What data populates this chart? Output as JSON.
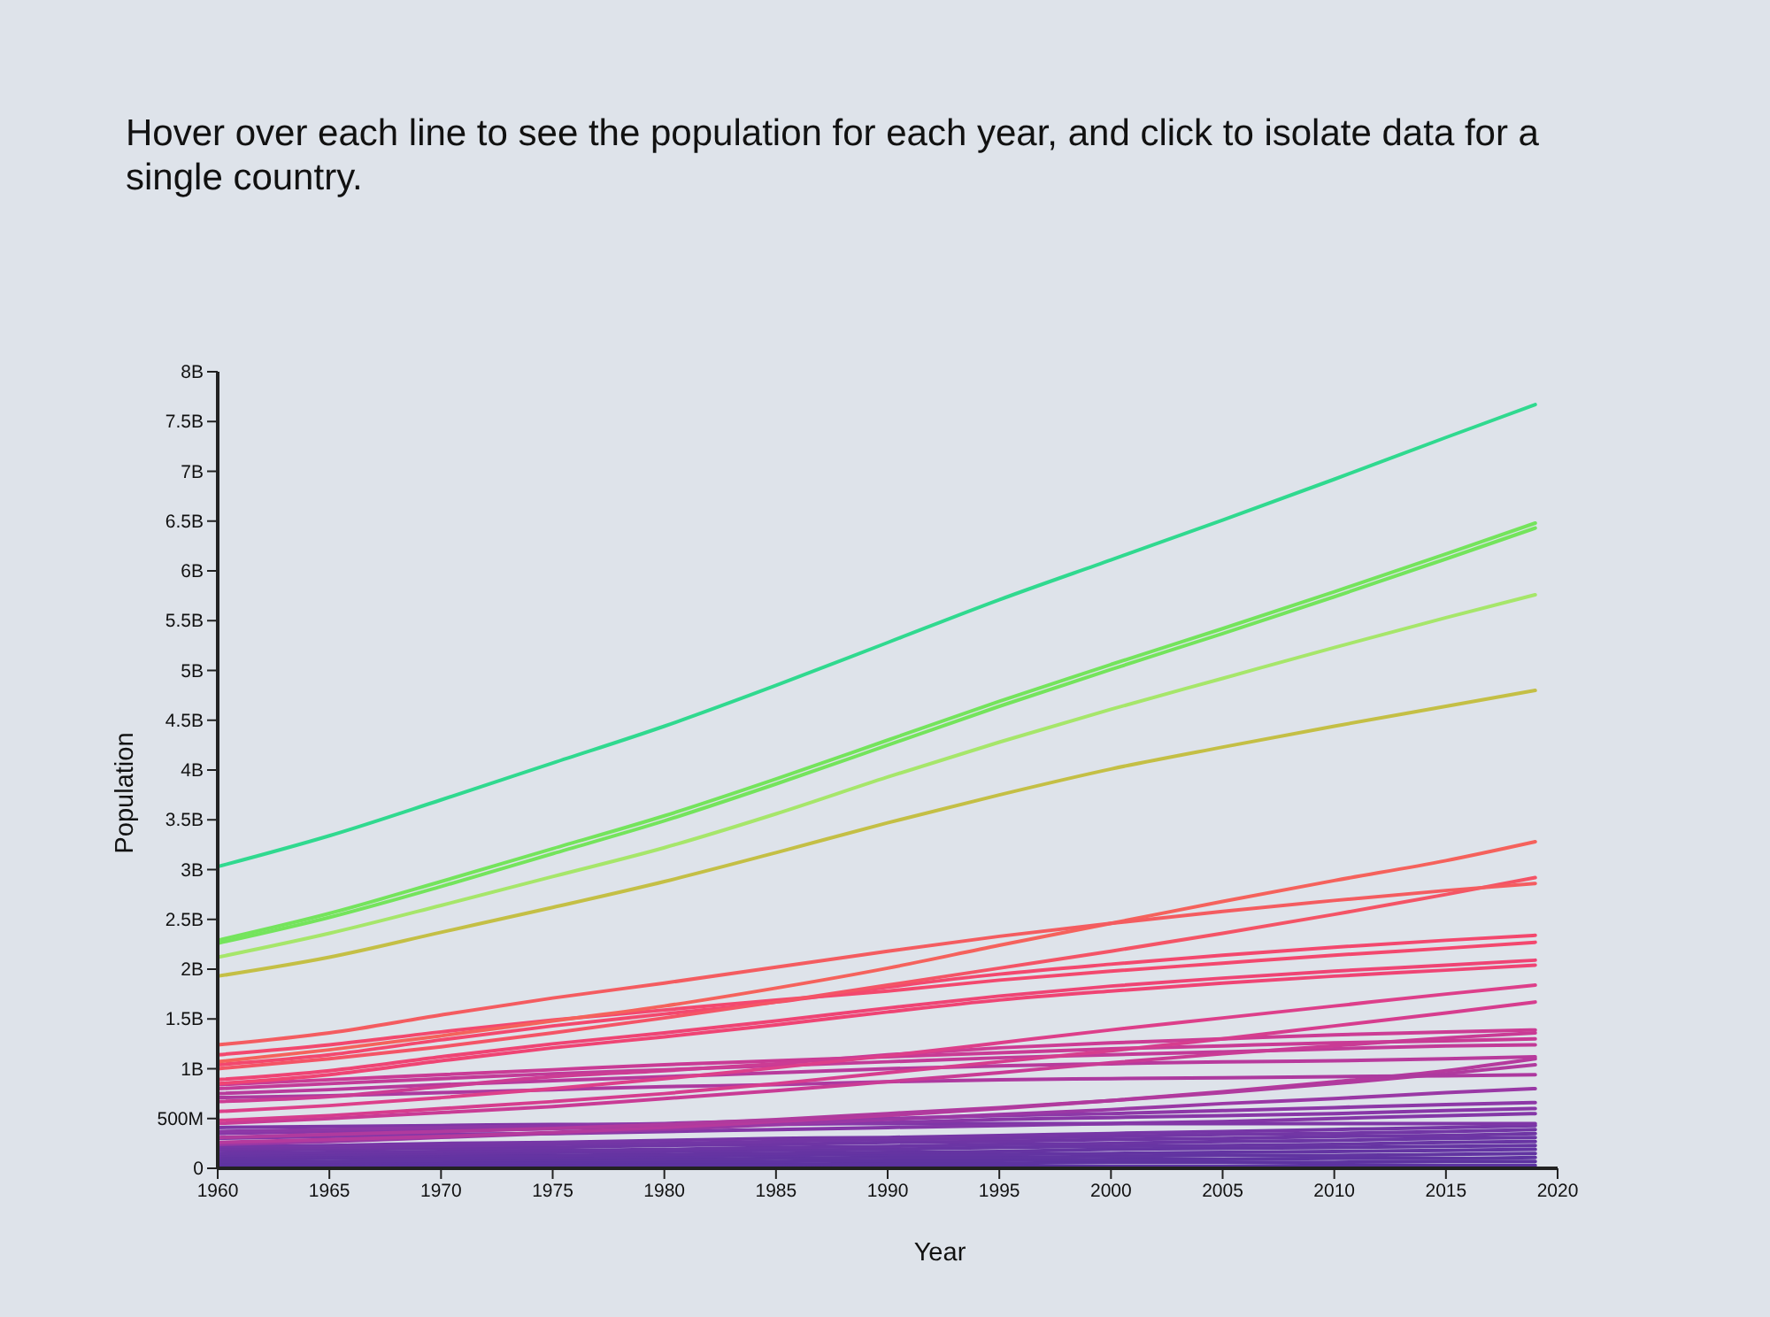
{
  "chart_data": {
    "type": "line",
    "subtitle": "Hover over each line to see the population for each year, and click to isolate data for a single country.",
    "xlabel": "Year",
    "ylabel": "Population",
    "x": [
      1960,
      1965,
      1970,
      1975,
      1980,
      1985,
      1990,
      1995,
      2000,
      2005,
      2010,
      2015,
      2019
    ],
    "xlim": [
      1960,
      2020
    ],
    "xticks": [
      1960,
      1965,
      1970,
      1975,
      1980,
      1985,
      1990,
      1995,
      2000,
      2005,
      2010,
      2015,
      2020
    ],
    "ylim": [
      0,
      8000000000.0
    ],
    "yticks": [
      0,
      {
        "value": 500000000.0,
        "label": "500M"
      },
      {
        "value": 1000000000.0,
        "label": "1B"
      },
      {
        "value": 1500000000.0,
        "label": "1.5B"
      },
      {
        "value": 2000000000.0,
        "label": "2B"
      },
      {
        "value": 2500000000.0,
        "label": "2.5B"
      },
      {
        "value": 3000000000.0,
        "label": "3B"
      },
      {
        "value": 3500000000.0,
        "label": "3.5B"
      },
      {
        "value": 4000000000.0,
        "label": "4B"
      },
      {
        "value": 4500000000.0,
        "label": "4.5B"
      },
      {
        "value": 5000000000.0,
        "label": "5B"
      },
      {
        "value": 5500000000.0,
        "label": "5.5B"
      },
      {
        "value": 6000000000.0,
        "label": "6B"
      },
      {
        "value": 6500000000.0,
        "label": "6.5B"
      },
      {
        "value": 7000000000.0,
        "label": "7B"
      },
      {
        "value": 7500000000.0,
        "label": "7.5B"
      },
      {
        "value": 8000000000.0,
        "label": "8B"
      }
    ],
    "series": [
      {
        "color": "#5b32a0",
        "values": [
          10000000.0,
          10000000.0,
          10000000.0,
          10000000.0,
          20000000.0,
          20000000.0,
          20000000.0,
          20000000.0,
          20000000.0,
          20000000.0,
          30000000.0,
          30000000.0,
          30000000.0
        ]
      },
      {
        "color": "#5d33a0",
        "values": [
          30000000.0,
          30000000.0,
          40000000.0,
          40000000.0,
          40000000.0,
          40000000.0,
          50000000.0,
          50000000.0,
          60000000.0,
          60000000.0,
          60000000.0,
          70000000.0,
          70000000.0
        ]
      },
      {
        "color": "#5f33a1",
        "values": [
          50000000.0,
          50000000.0,
          60000000.0,
          60000000.0,
          70000000.0,
          70000000.0,
          80000000.0,
          80000000.0,
          90000000.0,
          90000000.0,
          100000000.0,
          100000000.0,
          110000000.0
        ]
      },
      {
        "color": "#6134a1",
        "values": [
          70000000.0,
          70000000.0,
          80000000.0,
          90000000.0,
          90000000.0,
          100000000.0,
          110000000.0,
          110000000.0,
          120000000.0,
          130000000.0,
          130000000.0,
          140000000.0,
          150000000.0
        ]
      },
      {
        "color": "#6334a2",
        "values": [
          90000000.0,
          100000000.0,
          100000000.0,
          110000000.0,
          120000000.0,
          130000000.0,
          140000000.0,
          140000000.0,
          150000000.0,
          160000000.0,
          170000000.0,
          180000000.0,
          190000000.0
        ]
      },
      {
        "color": "#6534a2",
        "values": [
          110000000.0,
          120000000.0,
          130000000.0,
          130000000.0,
          140000000.0,
          150000000.0,
          160000000.0,
          170000000.0,
          190000000.0,
          200000000.0,
          210000000.0,
          220000000.0,
          230000000.0
        ]
      },
      {
        "color": "#6835a3",
        "values": [
          130000000.0,
          140000000.0,
          150000000.0,
          160000000.0,
          170000000.0,
          180000000.0,
          190000000.0,
          210000000.0,
          220000000.0,
          230000000.0,
          240000000.0,
          260000000.0,
          270000000.0
        ]
      },
      {
        "color": "#6b35a4",
        "values": [
          150000000.0,
          160000000.0,
          170000000.0,
          180000000.0,
          190000000.0,
          210000000.0,
          220000000.0,
          240000000.0,
          250000000.0,
          270000000.0,
          280000000.0,
          300000000.0,
          310000000.0
        ]
      },
      {
        "color": "#6e35a4",
        "values": [
          180000000.0,
          190000000.0,
          200000000.0,
          210000000.0,
          230000000.0,
          240000000.0,
          260000000.0,
          270000000.0,
          290000000.0,
          300000000.0,
          320000000.0,
          330000000.0,
          350000000.0
        ]
      },
      {
        "color": "#7236a5",
        "values": [
          200000000.0,
          210000000.0,
          220000000.0,
          240000000.0,
          250000000.0,
          270000000.0,
          290000000.0,
          300000000.0,
          320000000.0,
          340000000.0,
          350000000.0,
          370000000.0,
          390000000.0
        ]
      },
      {
        "color": "#7636a6",
        "values": [
          220000000.0,
          230000000.0,
          250000000.0,
          260000000.0,
          280000000.0,
          300000000.0,
          310000000.0,
          330000000.0,
          350000000.0,
          370000000.0,
          390000000.0,
          410000000.0,
          430000000.0
        ]
      },
      {
        "color": "#7e36a6",
        "values": [
          410000000.0,
          420000000.0,
          430000000.0,
          440000000.0,
          440000000.0,
          450000000.0,
          450000000.0,
          450000000.0,
          450000000.0,
          450000000.0,
          450000000.0,
          450000000.0,
          450000000.0
        ]
      },
      {
        "color": "#8437a7",
        "values": [
          300000000.0,
          320000000.0,
          340000000.0,
          350000000.0,
          370000000.0,
          390000000.0,
          410000000.0,
          430000000.0,
          450000000.0,
          470000000.0,
          500000000.0,
          530000000.0,
          550000000.0
        ]
      },
      {
        "color": "#8837a7",
        "values": [
          350000000.0,
          370000000.0,
          380000000.0,
          400000000.0,
          420000000.0,
          440000000.0,
          460000000.0,
          490000000.0,
          510000000.0,
          530000000.0,
          550000000.0,
          580000000.0,
          600000000.0
        ]
      },
      {
        "color": "#8d38a7",
        "values": [
          370000000.0,
          390000000.0,
          410000000.0,
          430000000.0,
          450000000.0,
          480000000.0,
          500000000.0,
          530000000.0,
          550000000.0,
          580000000.0,
          610000000.0,
          640000000.0,
          660000000.0
        ]
      },
      {
        "color": "#9a38a5",
        "values": [
          240000000.0,
          270000000.0,
          310000000.0,
          350000000.0,
          390000000.0,
          440000000.0,
          490000000.0,
          540000000.0,
          590000000.0,
          650000000.0,
          700000000.0,
          760000000.0,
          800000000.0
        ]
      },
      {
        "color": "#b53a9d",
        "values": [
          260000000.0,
          290000000.0,
          320000000.0,
          360000000.0,
          410000000.0,
          470000000.0,
          530000000.0,
          600000000.0,
          680000000.0,
          770000000.0,
          870000000.0,
          980000000.0,
          1100000000.0
        ]
      },
      {
        "color": "#b03a9e",
        "values": [
          310000000.0,
          340000000.0,
          370000000.0,
          400000000.0,
          440000000.0,
          490000000.0,
          550000000.0,
          610000000.0,
          680000000.0,
          760000000.0,
          850000000.0,
          950000000.0,
          1040000000.0
        ]
      },
      {
        "color": "#ad399f",
        "values": [
          710000000.0,
          730000000.0,
          760000000.0,
          790000000.0,
          820000000.0,
          840000000.0,
          870000000.0,
          890000000.0,
          900000000.0,
          910000000.0,
          920000000.0,
          930000000.0,
          940000000.0
        ]
      },
      {
        "color": "#b83a9c",
        "values": [
          750000000.0,
          790000000.0,
          840000000.0,
          880000000.0,
          920000000.0,
          960000000.0,
          1000000000.0,
          1030000000.0,
          1050000000.0,
          1070000000.0,
          1080000000.0,
          1100000000.0,
          1120000000.0
        ]
      },
      {
        "color": "#c23b98",
        "values": [
          800000000.0,
          850000000.0,
          900000000.0,
          950000000.0,
          990000000.0,
          1030000000.0,
          1070000000.0,
          1110000000.0,
          1140000000.0,
          1170000000.0,
          1200000000.0,
          1230000000.0,
          1240000000.0
        ]
      },
      {
        "color": "#c93b95",
        "values": [
          840000000.0,
          890000000.0,
          940000000.0,
          990000000.0,
          1040000000.0,
          1080000000.0,
          1120000000.0,
          1160000000.0,
          1200000000.0,
          1230000000.0,
          1260000000.0,
          1280000000.0,
          1300000000.0
        ]
      },
      {
        "color": "#c93b95",
        "values": [
          450000000.0,
          500000000.0,
          560000000.0,
          620000000.0,
          700000000.0,
          780000000.0,
          870000000.0,
          960000000.0,
          1060000000.0,
          1150000000.0,
          1230000000.0,
          1310000000.0,
          1360000000.0
        ]
      },
      {
        "color": "#cc3c94",
        "values": [
          670000000.0,
          720000000.0,
          820000000.0,
          920000000.0,
          980000000.0,
          1050000000.0,
          1140000000.0,
          1210000000.0,
          1260000000.0,
          1300000000.0,
          1340000000.0,
          1370000000.0,
          1390000000.0
        ]
      },
      {
        "color": "#d63d8e",
        "values": [
          480000000.0,
          530000000.0,
          600000000.0,
          670000000.0,
          750000000.0,
          850000000.0,
          960000000.0,
          1070000000.0,
          1180000000.0,
          1300000000.0,
          1430000000.0,
          1560000000.0,
          1670000000.0
        ]
      },
      {
        "color": "#dd3f8a",
        "values": [
          570000000.0,
          630000000.0,
          710000000.0,
          800000000.0,
          900000000.0,
          1010000000.0,
          1130000000.0,
          1260000000.0,
          1390000000.0,
          1510000000.0,
          1630000000.0,
          1750000000.0,
          1840000000.0
        ]
      },
      {
        "color": "#ef4474",
        "values": [
          850000000.0,
          940000000.0,
          1080000000.0,
          1210000000.0,
          1320000000.0,
          1440000000.0,
          1570000000.0,
          1690000000.0,
          1780000000.0,
          1860000000.0,
          1930000000.0,
          1990000000.0,
          2040000000.0
        ]
      },
      {
        "color": "#ef4474",
        "values": [
          890000000.0,
          980000000.0,
          1120000000.0,
          1250000000.0,
          1360000000.0,
          1480000000.0,
          1610000000.0,
          1730000000.0,
          1830000000.0,
          1910000000.0,
          1980000000.0,
          2040000000.0,
          2090000000.0
        ]
      },
      {
        "color": "#f3486e",
        "values": [
          1140000000.0,
          1240000000.0,
          1370000000.0,
          1490000000.0,
          1590000000.0,
          1690000000.0,
          1780000000.0,
          1890000000.0,
          1980000000.0,
          2060000000.0,
          2140000000.0,
          2210000000.0,
          2270000000.0
        ]
      },
      {
        "color": "#f3486e",
        "values": [
          1040000000.0,
          1140000000.0,
          1290000000.0,
          1430000000.0,
          1550000000.0,
          1670000000.0,
          1820000000.0,
          1950000000.0,
          2050000000.0,
          2140000000.0,
          2220000000.0,
          2290000000.0,
          2340000000.0
        ]
      },
      {
        "color": "#f45466",
        "values": [
          1000000000.0,
          1100000000.0,
          1220000000.0,
          1360000000.0,
          1510000000.0,
          1670000000.0,
          1840000000.0,
          2010000000.0,
          2180000000.0,
          2360000000.0,
          2550000000.0,
          2750000000.0,
          2920000000.0
        ]
      },
      {
        "color": "#f5625c",
        "values": [
          1070000000.0,
          1190000000.0,
          1330000000.0,
          1480000000.0,
          1630000000.0,
          1810000000.0,
          2010000000.0,
          2240000000.0,
          2460000000.0,
          2680000000.0,
          2890000000.0,
          3090000000.0,
          3280000000.0
        ]
      },
      {
        "color": "#f45c60",
        "values": [
          1240000000.0,
          1360000000.0,
          1540000000.0,
          1710000000.0,
          1860000000.0,
          2020000000.0,
          2180000000.0,
          2330000000.0,
          2460000000.0,
          2580000000.0,
          2690000000.0,
          2790000000.0,
          2860000000.0
        ]
      },
      {
        "color": "#c4bf45",
        "values": [
          1930000000.0,
          2120000000.0,
          2370000000.0,
          2620000000.0,
          2880000000.0,
          3170000000.0,
          3470000000.0,
          3750000000.0,
          4010000000.0,
          4230000000.0,
          4440000000.0,
          4640000000.0,
          4800000000.0
        ]
      },
      {
        "color": "#a6e66a",
        "values": [
          2120000000.0,
          2360000000.0,
          2640000000.0,
          2930000000.0,
          3220000000.0,
          3560000000.0,
          3930000000.0,
          4280000000.0,
          4610000000.0,
          4920000000.0,
          5230000000.0,
          5530000000.0,
          5760000000.0
        ]
      },
      {
        "color": "#74e45c",
        "values": [
          2260000000.0,
          2520000000.0,
          2830000000.0,
          3160000000.0,
          3490000000.0,
          3860000000.0,
          4250000000.0,
          4640000000.0,
          5010000000.0,
          5370000000.0,
          5740000000.0,
          6120000000.0,
          6430000000.0
        ]
      },
      {
        "color": "#74e45c",
        "values": [
          2290000000.0,
          2560000000.0,
          2880000000.0,
          3210000000.0,
          3540000000.0,
          3910000000.0,
          4300000000.0,
          4690000000.0,
          5060000000.0,
          5420000000.0,
          5790000000.0,
          6170000000.0,
          6480000000.0
        ]
      },
      {
        "color": "#30d98f",
        "values": [
          3030000000.0,
          3340000000.0,
          3700000000.0,
          4070000000.0,
          4440000000.0,
          4850000000.0,
          5280000000.0,
          5710000000.0,
          6110000000.0,
          6510000000.0,
          6920000000.0,
          7340000000.0,
          7670000000.0
        ]
      }
    ]
  }
}
